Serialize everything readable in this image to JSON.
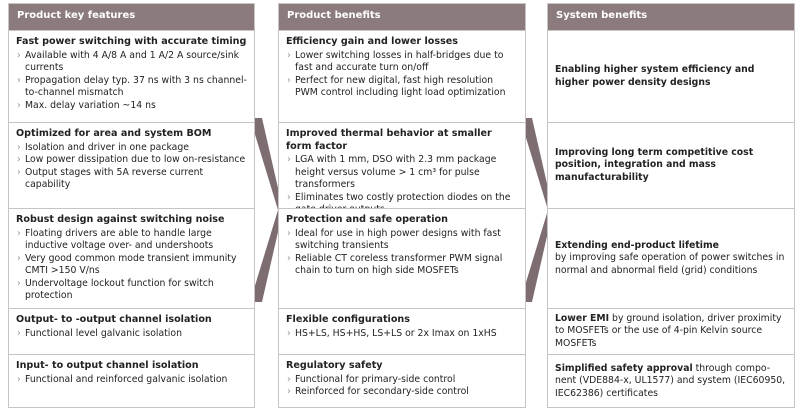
{
  "colors": {
    "header": "#8c7b7d",
    "arrow": "#7e6d70"
  },
  "columns": [
    {
      "header": "Product key features",
      "rows": [
        {
          "title": "Fast power switching with accurate timing",
          "items": [
            "Available with 4 A/8 A and 1 A/2 A source/sink currents",
            "Propagation delay typ. 37 ns with 3 ns channel-to-channel mismatch",
            "Max. delay variation ~14 ns"
          ]
        },
        {
          "title": "Optimized for area and system BOM",
          "items": [
            "Isolation and driver in one package",
            "Low power dissipation due to low on-resistance",
            "Output stages with 5A reverse current capability"
          ]
        },
        {
          "title": "Robust design against switching noise",
          "items": [
            "Floating drivers are able to handle large inductive voltage over- and undershoots",
            "Very good common mode transient immunity CMTI >150 V/ns",
            "Undervoltage lockout function for switch protection"
          ]
        },
        {
          "title": "Output- to -output channel isolation",
          "items": [
            "Functional level galvanic isolation"
          ]
        },
        {
          "title": "Input- to output channel isolation",
          "items": [
            "Functional and reinforced galvanic isolation"
          ]
        }
      ]
    },
    {
      "header": "Product benefits",
      "rows": [
        {
          "title": "Efficiency gain and lower losses",
          "items": [
            "Lower switching losses in half-bridges due to fast and accurate turn on/off",
            "Perfect for new digital, fast high resolution PWM control including light load optimization"
          ]
        },
        {
          "title": "Improved thermal behavior at smaller form factor",
          "items": [
            "LGA with 1 mm, DSO with 2.3 mm package height versus volume > 1 cm³ for pulse transformers",
            "Eliminates two costly protection diodes on the gate driver outputs"
          ]
        },
        {
          "title": "Protection and safe operation",
          "items": [
            "Ideal for use in high power designs with fast switching transients",
            "Reliable CT coreless transformer PWM signal chain to turn on high side MOSFETs"
          ]
        },
        {
          "title": "Flexible configurations",
          "items": [
            "HS+LS, HS+HS, LS+LS or  2x Imax on 1xHS"
          ]
        },
        {
          "title": "Regulatory safety",
          "items": [
            "Functional for primary-side control",
            "Reinforced for secondary-side control"
          ]
        }
      ]
    },
    {
      "header": "System benefits",
      "rows": [
        {
          "bold": "Enabling higher system efficiency and higher power density designs",
          "text": ""
        },
        {
          "bold": "Improving long term competitive cost position, integration and mass manufacturability",
          "text": ""
        },
        {
          "bold": "Extending end-product lifetime",
          "text": "by improving safe operation of power switches in normal and abnormal field (grid) conditions"
        },
        {
          "bold": "Lower EMI",
          "text": " by ground isolation, driver proximity to MOSFETs or the use of 4-pin Kelvin source MOSFETs"
        },
        {
          "bold": "Simplified safety approval",
          "text": " through compo-nent (VDE884-x, UL1577) and system (IEC60950, IEC62386) certificates"
        }
      ]
    }
  ]
}
